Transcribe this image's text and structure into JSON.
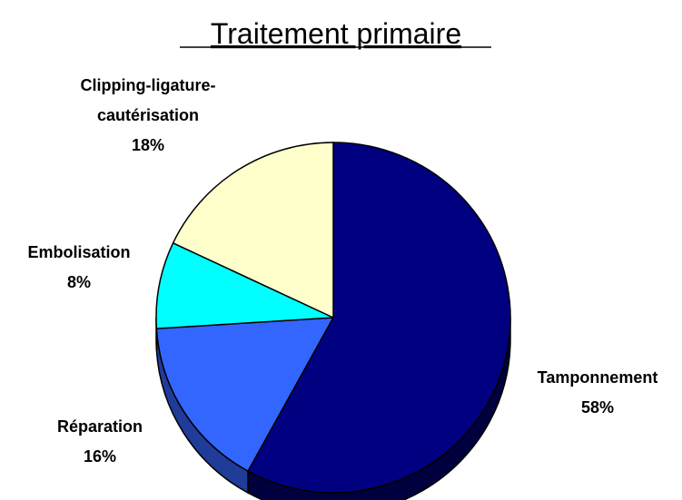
{
  "chart_data": {
    "type": "pie",
    "title": "Traitement primaire",
    "categories": [
      "Tamponnement",
      "Réparation",
      "Embolisation",
      "Clipping-ligature-\ncautérisation"
    ],
    "values": [
      58,
      16,
      8,
      18
    ],
    "value_labels": [
      "58%",
      "16%",
      "8%",
      "18%"
    ],
    "colors": [
      "#000080",
      "#3366ff",
      "#00ffff",
      "#ffffcc"
    ],
    "side_colors": [
      "#00003f",
      "#1f3c99",
      "#009999",
      "#99997a"
    ]
  }
}
